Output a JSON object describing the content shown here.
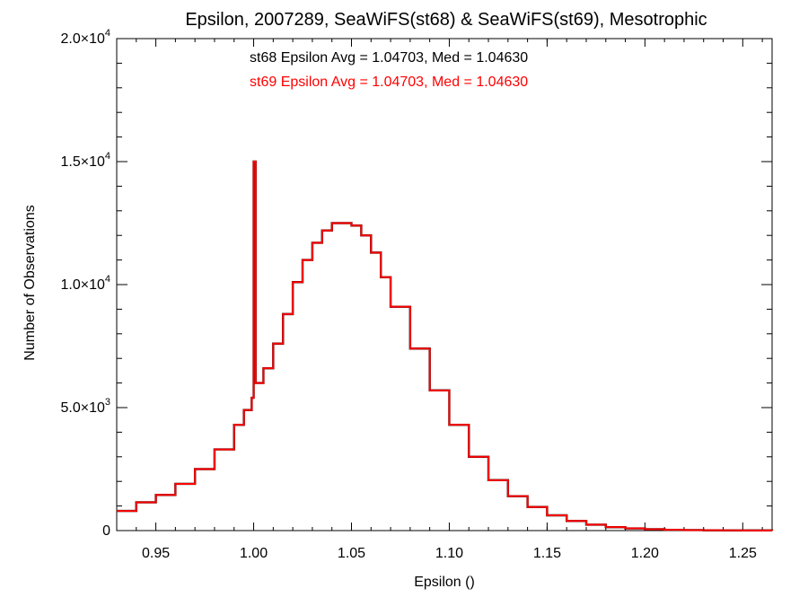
{
  "chart_data": {
    "type": "line",
    "step": true,
    "title": "Epsilon, 2007289, SeaWiFS(st68) & SeaWiFS(st69), Mesotrophic",
    "xlabel": "Epsilon ()",
    "ylabel": "Number of Observations",
    "xlim": [
      0.93,
      1.265
    ],
    "ylim": [
      0,
      20000
    ],
    "x_ticks": [
      {
        "value": 0.95,
        "label": "0.95"
      },
      {
        "value": 1.0,
        "label": "1.00"
      },
      {
        "value": 1.05,
        "label": "1.05"
      },
      {
        "value": 1.1,
        "label": "1.10"
      },
      {
        "value": 1.15,
        "label": "1.15"
      },
      {
        "value": 1.2,
        "label": "1.20"
      },
      {
        "value": 1.25,
        "label": "1.25"
      }
    ],
    "y_ticks": [
      {
        "value": 0,
        "mantissa": "0",
        "exponent": ""
      },
      {
        "value": 5000,
        "mantissa": "5.0×10",
        "exponent": "3"
      },
      {
        "value": 10000,
        "mantissa": "1.0×10",
        "exponent": "4"
      },
      {
        "value": 15000,
        "mantissa": "1.5×10",
        "exponent": "4"
      },
      {
        "value": 20000,
        "mantissa": "2.0×10",
        "exponent": "4"
      }
    ],
    "annotations": [
      {
        "text": "st68 Epsilon Avg = 1.04703, Med = 1.04630",
        "color": "#000000"
      },
      {
        "text": "st69 Epsilon Avg = 1.04703, Med = 1.04630",
        "color": "#ff0000"
      }
    ],
    "series": [
      {
        "color": "#000000",
        "x": [
          0.93,
          0.94,
          0.95,
          0.96,
          0.97,
          0.98,
          0.99,
          0.995,
          0.999,
          1.0,
          1.001,
          1.005,
          1.01,
          1.015,
          1.02,
          1.025,
          1.03,
          1.035,
          1.04,
          1.045,
          1.05,
          1.055,
          1.06,
          1.065,
          1.07,
          1.08,
          1.09,
          1.1,
          1.11,
          1.12,
          1.13,
          1.14,
          1.15,
          1.16,
          1.17,
          1.18,
          1.19,
          1.2,
          1.21,
          1.22,
          1.23,
          1.24,
          1.25,
          1.265
        ],
        "y": [
          800,
          1150,
          1450,
          1900,
          2500,
          3300,
          4300,
          4900,
          5400,
          15000,
          6000,
          6600,
          7600,
          8800,
          10100,
          11000,
          11700,
          12200,
          12500,
          12500,
          12400,
          12000,
          11300,
          10300,
          9100,
          7400,
          5700,
          4300,
          3000,
          2050,
          1400,
          960,
          620,
          390,
          240,
          140,
          90,
          55,
          30,
          20,
          12,
          8,
          5,
          3
        ]
      },
      {
        "color": "#ff0000",
        "x": [
          0.93,
          0.94,
          0.95,
          0.96,
          0.97,
          0.98,
          0.99,
          0.995,
          0.999,
          1.0,
          1.001,
          1.005,
          1.01,
          1.015,
          1.02,
          1.025,
          1.03,
          1.035,
          1.04,
          1.045,
          1.05,
          1.055,
          1.06,
          1.065,
          1.07,
          1.08,
          1.09,
          1.1,
          1.11,
          1.12,
          1.13,
          1.14,
          1.15,
          1.16,
          1.17,
          1.18,
          1.19,
          1.2,
          1.21,
          1.22,
          1.23,
          1.24,
          1.25,
          1.265
        ],
        "y": [
          800,
          1150,
          1450,
          1900,
          2500,
          3300,
          4300,
          4900,
          5400,
          15000,
          6000,
          6600,
          7600,
          8800,
          10100,
          11000,
          11700,
          12200,
          12500,
          12500,
          12400,
          12000,
          11300,
          10300,
          9100,
          7400,
          5700,
          4300,
          3000,
          2050,
          1400,
          960,
          620,
          390,
          240,
          140,
          90,
          55,
          30,
          20,
          12,
          8,
          5,
          3
        ]
      }
    ]
  }
}
